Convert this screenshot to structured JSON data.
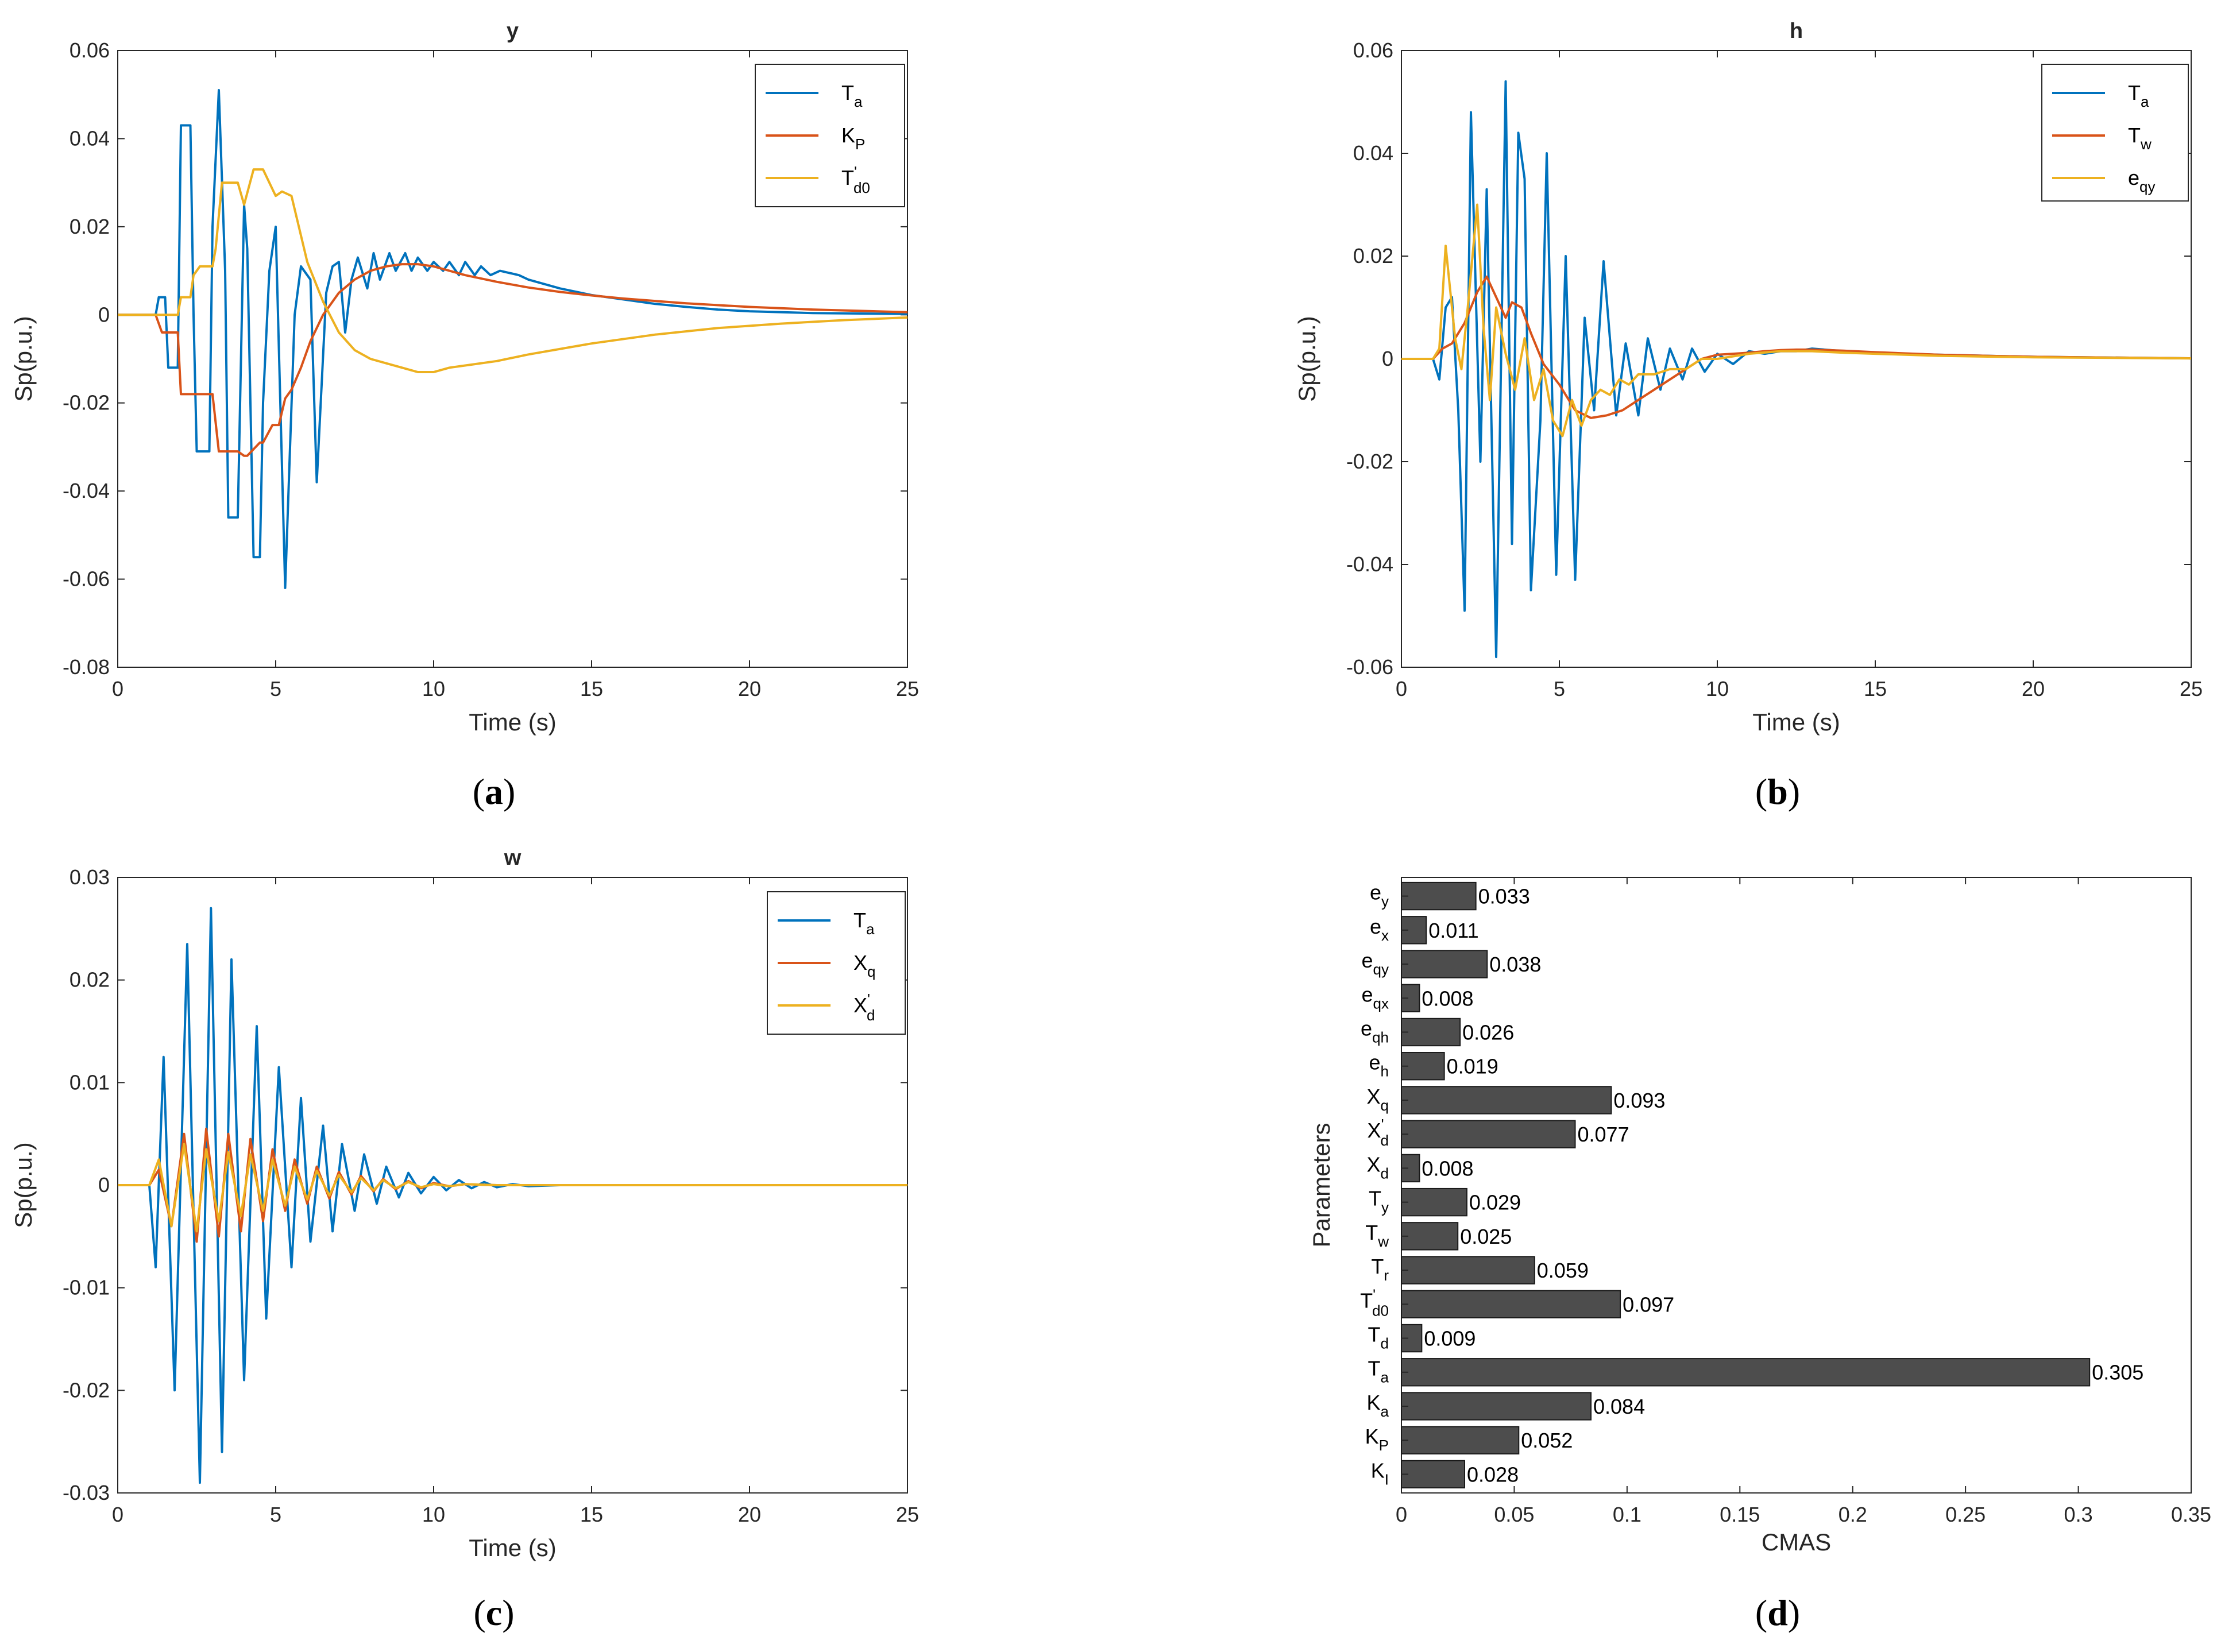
{
  "colors": {
    "blue": "#0072BD",
    "red": "#D95319",
    "yellow": "#EDB120",
    "bar": "#4D4D4D"
  },
  "chart_data": [
    {
      "id": "a",
      "type": "line",
      "title": "y",
      "xlabel": "Time (s)",
      "ylabel": "Sp(p.u.)",
      "caption": "a",
      "xlim": [
        0,
        25
      ],
      "ylim": [
        -0.08,
        0.06
      ],
      "xticks": [
        0,
        5,
        10,
        15,
        20,
        25
      ],
      "yticks": [
        -0.08,
        -0.06,
        -0.04,
        -0.02,
        0,
        0.02,
        0.04,
        0.06
      ],
      "ytick_labels": [
        "-0.08",
        "-0.06",
        "-0.04",
        "-0.02",
        "0",
        "0.02",
        "0.04",
        "0.06"
      ],
      "legend_position": "top-right",
      "series": [
        {
          "name": "T",
          "sub": "a",
          "color": "#0072BD",
          "x": [
            0,
            1.2,
            1.3,
            1.5,
            1.6,
            1.7,
            1.9,
            2.0,
            2.1,
            2.3,
            2.4,
            2.5,
            2.6,
            2.9,
            3.0,
            3.2,
            3.4,
            3.5,
            3.8,
            4.0,
            4.1,
            4.3,
            4.5,
            4.6,
            4.8,
            5.0,
            5.3,
            5.6,
            5.8,
            6.1,
            6.3,
            6.6,
            6.8,
            7.0,
            7.2,
            7.4,
            7.6,
            7.9,
            8.1,
            8.3,
            8.6,
            8.8,
            9.1,
            9.3,
            9.5,
            9.8,
            10.0,
            10.3,
            10.5,
            10.8,
            11.0,
            11.3,
            11.5,
            11.8,
            12.1,
            12.4,
            12.7,
            13.0,
            14.0,
            15.0,
            16.0,
            17.0,
            18.0,
            19.0,
            20.0,
            22.0,
            25.0
          ],
          "y": [
            0,
            0,
            0.004,
            0.004,
            -0.012,
            -0.012,
            -0.012,
            0.043,
            0.043,
            0.043,
            0.0,
            -0.031,
            -0.031,
            -0.031,
            0.02,
            0.051,
            0.01,
            -0.046,
            -0.046,
            0.025,
            0.015,
            -0.055,
            -0.055,
            -0.02,
            0.01,
            0.02,
            -0.062,
            0.0,
            0.011,
            0.008,
            -0.038,
            0.005,
            0.011,
            0.012,
            -0.004,
            0.008,
            0.013,
            0.006,
            0.014,
            0.008,
            0.014,
            0.01,
            0.014,
            0.01,
            0.013,
            0.01,
            0.012,
            0.01,
            0.012,
            0.009,
            0.012,
            0.009,
            0.011,
            0.009,
            0.01,
            0.0095,
            0.009,
            0.008,
            0.006,
            0.0045,
            0.0035,
            0.0025,
            0.0018,
            0.0012,
            0.0008,
            0.0004,
            0.0002
          ]
        },
        {
          "name": "K",
          "sub": "P",
          "color": "#D95319",
          "x": [
            0,
            1.2,
            1.4,
            1.5,
            1.9,
            2.0,
            2.3,
            2.4,
            3.0,
            3.2,
            3.3,
            3.8,
            4.0,
            4.1,
            4.5,
            4.6,
            4.9,
            5.1,
            5.3,
            5.5,
            5.8,
            6.1,
            6.5,
            7.0,
            7.5,
            8.0,
            8.5,
            9.0,
            9.5,
            10.0,
            11.0,
            12.0,
            13.0,
            14.0,
            15.0,
            16.0,
            18.0,
            20.0,
            22.0,
            25.0
          ],
          "y": [
            0,
            0,
            -0.004,
            -0.004,
            -0.004,
            -0.018,
            -0.018,
            -0.018,
            -0.018,
            -0.031,
            -0.031,
            -0.031,
            -0.032,
            -0.032,
            -0.029,
            -0.029,
            -0.025,
            -0.025,
            -0.019,
            -0.017,
            -0.012,
            -0.006,
            0.0,
            0.005,
            0.008,
            0.01,
            0.011,
            0.0115,
            0.0115,
            0.011,
            0.009,
            0.0075,
            0.0062,
            0.0052,
            0.0044,
            0.0037,
            0.0026,
            0.0018,
            0.0012,
            0.0006
          ]
        },
        {
          "name": "T",
          "sub": "d0",
          "prime": true,
          "color": "#EDB120",
          "x": [
            0,
            1.2,
            1.4,
            1.9,
            2.0,
            2.3,
            2.4,
            2.6,
            3.0,
            3.1,
            3.3,
            3.5,
            3.8,
            4.0,
            4.3,
            4.6,
            5.0,
            5.2,
            5.5,
            6.0,
            6.5,
            7.0,
            7.5,
            8.0,
            8.5,
            9.0,
            9.5,
            10.0,
            10.5,
            11.0,
            12.0,
            13.0,
            15.0,
            17.0,
            19.0,
            21.0,
            23.0,
            25.0
          ],
          "y": [
            0,
            0,
            0,
            0,
            0.004,
            0.004,
            0.009,
            0.011,
            0.011,
            0.015,
            0.03,
            0.03,
            0.03,
            0.025,
            0.033,
            0.033,
            0.027,
            0.028,
            0.027,
            0.012,
            0.003,
            -0.004,
            -0.008,
            -0.01,
            -0.011,
            -0.012,
            -0.013,
            -0.013,
            -0.012,
            -0.0115,
            -0.0105,
            -0.009,
            -0.0065,
            -0.0045,
            -0.003,
            -0.002,
            -0.0012,
            -0.0006
          ]
        }
      ]
    },
    {
      "id": "b",
      "type": "line",
      "title": "h",
      "xlabel": "Time (s)",
      "ylabel": "Sp(p.u.)",
      "caption": "b",
      "xlim": [
        0,
        25
      ],
      "ylim": [
        -0.06,
        0.06
      ],
      "xticks": [
        0,
        5,
        10,
        15,
        20,
        25
      ],
      "yticks": [
        -0.06,
        -0.04,
        -0.02,
        0,
        0.02,
        0.04,
        0.06
      ],
      "ytick_labels": [
        "-0.06",
        "-0.04",
        "-0.02",
        "0",
        "0.02",
        "0.04",
        "0.06"
      ],
      "legend_position": "top-right",
      "series": [
        {
          "name": "T",
          "sub": "a",
          "color": "#0072BD",
          "x": [
            0,
            1.0,
            1.2,
            1.4,
            1.6,
            1.8,
            2.0,
            2.2,
            2.5,
            2.7,
            3.0,
            3.3,
            3.5,
            3.7,
            3.9,
            4.1,
            4.4,
            4.6,
            4.9,
            5.2,
            5.5,
            5.8,
            6.1,
            6.4,
            6.8,
            7.1,
            7.5,
            7.8,
            8.2,
            8.5,
            8.9,
            9.2,
            9.6,
            10.0,
            10.5,
            11.0,
            11.5,
            12.0,
            12.5,
            13.0,
            14.0,
            15.0,
            17.0,
            20.0,
            25.0
          ],
          "y": [
            0,
            0,
            -0.004,
            0.01,
            0.012,
            -0.01,
            -0.049,
            0.048,
            -0.02,
            0.033,
            -0.058,
            0.054,
            -0.036,
            0.044,
            0.035,
            -0.045,
            -0.012,
            0.04,
            -0.042,
            0.02,
            -0.043,
            0.008,
            -0.01,
            0.019,
            -0.011,
            0.003,
            -0.011,
            0.004,
            -0.006,
            0.002,
            -0.004,
            0.002,
            -0.0025,
            0.001,
            -0.001,
            0.0015,
            0.001,
            0.0015,
            0.0015,
            0.002,
            0.0015,
            0.0012,
            0.0008,
            0.0004,
            0.0001
          ]
        },
        {
          "name": "T",
          "sub": "w",
          "color": "#D95319",
          "x": [
            0,
            1.0,
            1.3,
            1.6,
            2.0,
            2.4,
            2.7,
            3.0,
            3.3,
            3.5,
            3.8,
            4.1,
            4.5,
            5.0,
            5.5,
            6.0,
            6.5,
            7.0,
            7.5,
            8.0,
            8.5,
            9.0,
            9.5,
            10.0,
            10.5,
            11.0,
            11.5,
            12.0,
            12.5,
            13.0,
            14.0,
            15.0,
            17.0,
            20.0,
            25.0
          ],
          "y": [
            0,
            0,
            0.002,
            0.003,
            0.007,
            0.013,
            0.016,
            0.012,
            0.008,
            0.011,
            0.01,
            0.005,
            -0.001,
            -0.005,
            -0.01,
            -0.0115,
            -0.011,
            -0.01,
            -0.008,
            -0.006,
            -0.004,
            -0.002,
            0.0,
            0.0008,
            0.001,
            0.0012,
            0.0015,
            0.0017,
            0.0018,
            0.0018,
            0.0016,
            0.0013,
            0.0008,
            0.0004,
            0.0001
          ]
        },
        {
          "name": "e",
          "sub": "qy",
          "color": "#EDB120",
          "x": [
            0,
            1.0,
            1.2,
            1.4,
            1.7,
            1.9,
            2.1,
            2.4,
            2.6,
            2.8,
            3.0,
            3.3,
            3.6,
            3.9,
            4.2,
            4.5,
            4.8,
            5.1,
            5.4,
            5.7,
            6.0,
            6.3,
            6.6,
            6.9,
            7.2,
            7.5,
            8.0,
            8.5,
            9.0,
            9.5,
            10.0,
            11.0,
            12.0,
            13.0,
            14.0,
            15.0,
            17.0,
            20.0,
            25.0
          ],
          "y": [
            0,
            0,
            0.002,
            0.022,
            0.004,
            -0.002,
            0.01,
            0.03,
            0.006,
            -0.008,
            0.01,
            0.001,
            -0.006,
            0.004,
            -0.008,
            -0.002,
            -0.012,
            -0.015,
            -0.008,
            -0.013,
            -0.008,
            -0.006,
            -0.007,
            -0.004,
            -0.005,
            -0.003,
            -0.003,
            -0.002,
            -0.002,
            0.0,
            0.0,
            0.001,
            0.0015,
            0.0015,
            0.0012,
            0.001,
            0.0006,
            0.0003,
            0.0001
          ]
        }
      ]
    },
    {
      "id": "c",
      "type": "line",
      "title": "w",
      "xlabel": "Time (s)",
      "ylabel": "Sp(p.u.)",
      "caption": "c",
      "xlim": [
        0,
        25
      ],
      "ylim": [
        -0.03,
        0.03
      ],
      "xticks": [
        0,
        5,
        10,
        15,
        20,
        25
      ],
      "yticks": [
        -0.03,
        -0.02,
        -0.01,
        0,
        0.01,
        0.02,
        0.03
      ],
      "ytick_labels": [
        "-0.03",
        "-0.02",
        "-0.01",
        "0",
        "0.01",
        "0.02",
        "0.03"
      ],
      "legend_position": "top-right",
      "series": [
        {
          "name": "T",
          "sub": "a",
          "color": "#0072BD",
          "x": [
            0,
            1.0,
            1.2,
            1.45,
            1.8,
            2.2,
            2.6,
            2.95,
            3.3,
            3.6,
            4.0,
            4.4,
            4.7,
            5.1,
            5.5,
            5.8,
            6.1,
            6.5,
            6.8,
            7.1,
            7.5,
            7.8,
            8.2,
            8.5,
            8.9,
            9.2,
            9.6,
            10.0,
            10.4,
            10.8,
            11.2,
            11.6,
            12.0,
            12.5,
            13.0,
            14.0,
            15.0,
            25.0
          ],
          "y": [
            0,
            0,
            -0.008,
            0.0125,
            -0.02,
            0.0235,
            -0.029,
            0.027,
            -0.026,
            0.022,
            -0.019,
            0.0155,
            -0.013,
            0.0115,
            -0.008,
            0.0085,
            -0.0055,
            0.0058,
            -0.0045,
            0.004,
            -0.0025,
            0.003,
            -0.0018,
            0.0018,
            -0.0012,
            0.0012,
            -0.0008,
            0.0008,
            -0.0005,
            0.0005,
            -0.0003,
            0.0003,
            -0.0002,
            0.0001,
            -0.0001,
            0,
            0,
            0
          ]
        },
        {
          "name": "X",
          "sub": "q",
          "color": "#D95319",
          "x": [
            0,
            1.0,
            1.3,
            1.7,
            2.1,
            2.5,
            2.8,
            3.2,
            3.5,
            3.9,
            4.2,
            4.6,
            4.9,
            5.3,
            5.6,
            6.0,
            6.3,
            6.7,
            7.0,
            7.4,
            7.7,
            8.1,
            8.4,
            8.8,
            9.2,
            9.6,
            10.0,
            10.5,
            11.0,
            12.0,
            13.0,
            25.0
          ],
          "y": [
            0,
            0,
            0.0015,
            -0.004,
            0.005,
            -0.0055,
            0.0055,
            -0.005,
            0.005,
            -0.0045,
            0.0045,
            -0.0035,
            0.0035,
            -0.0025,
            0.0025,
            -0.0018,
            0.0018,
            -0.0013,
            0.0013,
            -0.0009,
            0.0009,
            -0.0006,
            0.0006,
            -0.0004,
            0.0004,
            -0.0003,
            0.0002,
            -0.0001,
            0.0001,
            0,
            0,
            0
          ]
        },
        {
          "name": "X",
          "sub": "d",
          "prime": true,
          "color": "#EDB120",
          "x": [
            0,
            1.0,
            1.3,
            1.7,
            2.1,
            2.5,
            2.8,
            3.2,
            3.5,
            3.9,
            4.2,
            4.6,
            4.9,
            5.3,
            5.6,
            6.0,
            6.3,
            6.7,
            7.0,
            7.4,
            7.7,
            8.1,
            8.4,
            8.8,
            9.2,
            9.6,
            10.0,
            10.5,
            11.0,
            12.0,
            13.0,
            25.0
          ],
          "y": [
            0,
            0,
            0.0025,
            -0.004,
            0.004,
            -0.0045,
            0.0035,
            -0.0035,
            0.0032,
            -0.003,
            0.003,
            -0.0025,
            0.0025,
            -0.002,
            0.0018,
            -0.0014,
            0.0014,
            -0.001,
            0.001,
            -0.0007,
            0.0007,
            -0.0005,
            0.0005,
            -0.0003,
            0.0003,
            -0.0002,
            0.0001,
            -0.0001,
            0.0001,
            0,
            0,
            0
          ]
        }
      ]
    },
    {
      "id": "d",
      "type": "bar",
      "orientation": "horizontal",
      "xlabel": "CMAS",
      "ylabel": "Parameters",
      "caption": "d",
      "xlim": [
        0,
        0.35
      ],
      "xticks": [
        0,
        0.05,
        0.1,
        0.15,
        0.2,
        0.25,
        0.3,
        0.35
      ],
      "xtick_labels": [
        "0",
        "0.05",
        "0.1",
        "0.15",
        "0.2",
        "0.25",
        "0.3",
        "0.35"
      ],
      "bars": [
        {
          "name": "e",
          "sub": "y",
          "value": 0.033,
          "label": "0.033"
        },
        {
          "name": "e",
          "sub": "x",
          "value": 0.011,
          "label": "0.011"
        },
        {
          "name": "e",
          "sub": "qy",
          "value": 0.038,
          "label": "0.038"
        },
        {
          "name": "e",
          "sub": "qx",
          "value": 0.008,
          "label": "0.008"
        },
        {
          "name": "e",
          "sub": "qh",
          "value": 0.026,
          "label": "0.026"
        },
        {
          "name": "e",
          "sub": "h",
          "value": 0.019,
          "label": "0.019"
        },
        {
          "name": "X",
          "sub": "q",
          "value": 0.093,
          "label": "0.093"
        },
        {
          "name": "X",
          "sub": "d",
          "prime": true,
          "value": 0.077,
          "label": "0.077"
        },
        {
          "name": "X",
          "sub": "d",
          "value": 0.008,
          "label": "0.008"
        },
        {
          "name": "T",
          "sub": "y",
          "value": 0.029,
          "label": "0.029"
        },
        {
          "name": "T",
          "sub": "w",
          "value": 0.025,
          "label": "0.025"
        },
        {
          "name": "T",
          "sub": "r",
          "value": 0.059,
          "label": "0.059"
        },
        {
          "name": "T",
          "sub": "d0",
          "prime": true,
          "value": 0.097,
          "label": "0.097"
        },
        {
          "name": "T",
          "sub": "d",
          "value": 0.009,
          "label": "0.009"
        },
        {
          "name": "T",
          "sub": "a",
          "value": 0.305,
          "label": "0.305"
        },
        {
          "name": "K",
          "sub": "a",
          "value": 0.084,
          "label": "0.084"
        },
        {
          "name": "K",
          "sub": "P",
          "value": 0.052,
          "label": "0.052"
        },
        {
          "name": "K",
          "sub": "I",
          "value": 0.028,
          "label": "0.028"
        }
      ]
    }
  ]
}
